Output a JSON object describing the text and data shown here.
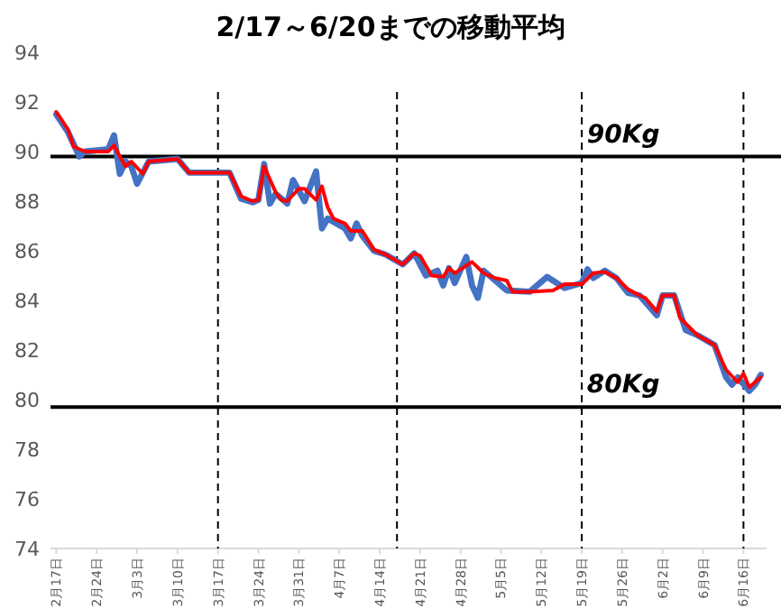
{
  "chart_data": {
    "type": "line",
    "title": "2/17～6/20までの移動平均",
    "xlim": [
      "--02-16",
      "--06-20"
    ],
    "ylim": [
      74,
      94
    ],
    "yticks": [
      74,
      76,
      78,
      80,
      82,
      84,
      86,
      88,
      90,
      92,
      94
    ],
    "xticks": [
      {
        "value": "--02-17",
        "label": "2月17日"
      },
      {
        "value": "--02-24",
        "label": "2月24日"
      },
      {
        "value": "--03-03",
        "label": "3月3日"
      },
      {
        "value": "--03-10",
        "label": "3月10日"
      },
      {
        "value": "--03-17",
        "label": "3月17日"
      },
      {
        "value": "--03-24",
        "label": "3月24日"
      },
      {
        "value": "--03-31",
        "label": "3月31日"
      },
      {
        "value": "--04-07",
        "label": "4月7日"
      },
      {
        "value": "--04-14",
        "label": "4月14日"
      },
      {
        "value": "--04-21",
        "label": "4月21日"
      },
      {
        "value": "--04-28",
        "label": "4月28日"
      },
      {
        "value": "--05-05",
        "label": "5月5日"
      },
      {
        "value": "--05-12",
        "label": "5月12日"
      },
      {
        "value": "--05-19",
        "label": "5月19日"
      },
      {
        "value": "--05-26",
        "label": "5月26日"
      },
      {
        "value": "--06-02",
        "label": "6月2日"
      },
      {
        "value": "--06-09",
        "label": "6月9日"
      },
      {
        "value": "--06-16",
        "label": "6月16日"
      }
    ],
    "series": [
      {
        "color": "#4472c4",
        "x": [
          "--02-17",
          "--02-19",
          "--02-21",
          "--02-22",
          "--02-26",
          "--02-27",
          "--02-28",
          "--03-01",
          "--03-02",
          "--03-03",
          "--03-05",
          "--03-10",
          "--03-12",
          "--03-19",
          "--03-21",
          "--03-23",
          "--03-24",
          "--03-25",
          "--03-26",
          "--03-27",
          "--03-29",
          "--03-30",
          "--04-01",
          "--04-03",
          "--04-04",
          "--04-05",
          "--04-08",
          "--04-09",
          "--04-10",
          "--04-11",
          "--04-13",
          "--04-15",
          "--04-18",
          "--04-20",
          "--04-22",
          "--04-24",
          "--04-25",
          "--04-26",
          "--04-27",
          "--04-29",
          "--04-30",
          "--05-01",
          "--05-02",
          "--05-04",
          "--05-06",
          "--05-10",
          "--05-13",
          "--05-16",
          "--05-19",
          "--05-20",
          "--05-21",
          "--05-23",
          "--05-25",
          "--05-27",
          "--05-29",
          "--06-01",
          "--06-02",
          "--06-04",
          "--06-06",
          "--06-08",
          "--06-11",
          "--06-13",
          "--06-14",
          "--06-15",
          "--06-17",
          "--06-18",
          "--06-19"
        ],
        "values": [
          91.5,
          90.8,
          89.8,
          90.0,
          90.1,
          90.65,
          89.1,
          89.6,
          89.4,
          88.7,
          89.6,
          89.7,
          89.15,
          89.15,
          88.1,
          87.95,
          88.05,
          89.5,
          87.9,
          88.3,
          87.9,
          88.85,
          88.0,
          89.2,
          86.9,
          87.3,
          86.9,
          86.5,
          87.1,
          86.6,
          86.0,
          85.85,
          85.45,
          85.9,
          85.0,
          85.2,
          84.6,
          85.3,
          84.7,
          85.75,
          84.6,
          84.1,
          85.2,
          84.8,
          84.4,
          84.35,
          84.95,
          84.5,
          84.7,
          85.25,
          84.9,
          85.2,
          84.9,
          84.3,
          84.2,
          83.4,
          84.2,
          84.2,
          82.8,
          82.6,
          82.2,
          80.9,
          80.6,
          80.9,
          80.35,
          80.6,
          81.0
        ]
      },
      {
        "color": "#ff0000",
        "x": [
          "--02-17",
          "--02-19",
          "--02-20",
          "--02-22",
          "--02-26",
          "--02-27",
          "--02-28",
          "--03-01",
          "--03-02",
          "--03-04",
          "--03-05",
          "--03-10",
          "--03-12",
          "--03-19",
          "--03-21",
          "--03-23",
          "--03-24",
          "--03-25",
          "--03-27",
          "--03-28",
          "--03-29",
          "--03-31",
          "--04-01",
          "--04-03",
          "--04-04",
          "--04-05",
          "--04-06",
          "--04-08",
          "--04-09",
          "--04-11",
          "--04-13",
          "--04-15",
          "--04-18",
          "--04-20",
          "--04-21",
          "--04-23",
          "--04-25",
          "--04-26",
          "--04-27",
          "--04-28",
          "--04-30",
          "--05-02",
          "--05-04",
          "--05-06",
          "--05-07",
          "--05-10",
          "--05-14",
          "--05-16",
          "--05-19",
          "--05-21",
          "--05-23",
          "--05-25",
          "--05-27",
          "--05-29",
          "--05-30",
          "--06-01",
          "--06-02",
          "--06-04",
          "--06-05",
          "--06-08",
          "--06-11",
          "--06-13",
          "--06-15",
          "--06-16",
          "--06-17",
          "--06-19"
        ],
        "values": [
          91.6,
          90.9,
          90.2,
          90.0,
          90.0,
          90.25,
          89.8,
          89.4,
          89.6,
          89.1,
          89.6,
          89.7,
          89.15,
          89.15,
          88.2,
          88.0,
          88.05,
          89.4,
          88.35,
          88.05,
          88.0,
          88.5,
          88.5,
          88.05,
          88.6,
          87.75,
          87.3,
          87.1,
          86.8,
          86.8,
          86.05,
          85.85,
          85.45,
          85.9,
          85.8,
          85.0,
          84.95,
          85.3,
          85.1,
          85.25,
          85.55,
          85.1,
          84.9,
          84.8,
          84.35,
          84.35,
          84.4,
          84.65,
          84.65,
          85.1,
          85.15,
          84.9,
          84.45,
          84.2,
          84.1,
          83.55,
          84.2,
          84.2,
          83.3,
          82.6,
          82.2,
          81.2,
          80.7,
          81.05,
          80.5,
          80.9
        ]
      }
    ],
    "ref_lines": [
      {
        "axis": "y",
        "value": 89.8,
        "label": "90Kg",
        "color": "#000000",
        "line_style": "solid"
      },
      {
        "axis": "y",
        "value": 79.7,
        "label": "80Kg",
        "color": "#000000",
        "line_style": "solid"
      },
      {
        "axis": "x",
        "value": "--03-17",
        "color": "#000000",
        "line_style": "dashed"
      },
      {
        "axis": "x",
        "value": "--04-17",
        "color": "#000000",
        "line_style": "dashed"
      },
      {
        "axis": "x",
        "value": "--05-19",
        "color": "#000000",
        "line_style": "dashed"
      },
      {
        "axis": "x",
        "value": "--06-16",
        "color": "#000000",
        "line_style": "dashed"
      }
    ]
  }
}
